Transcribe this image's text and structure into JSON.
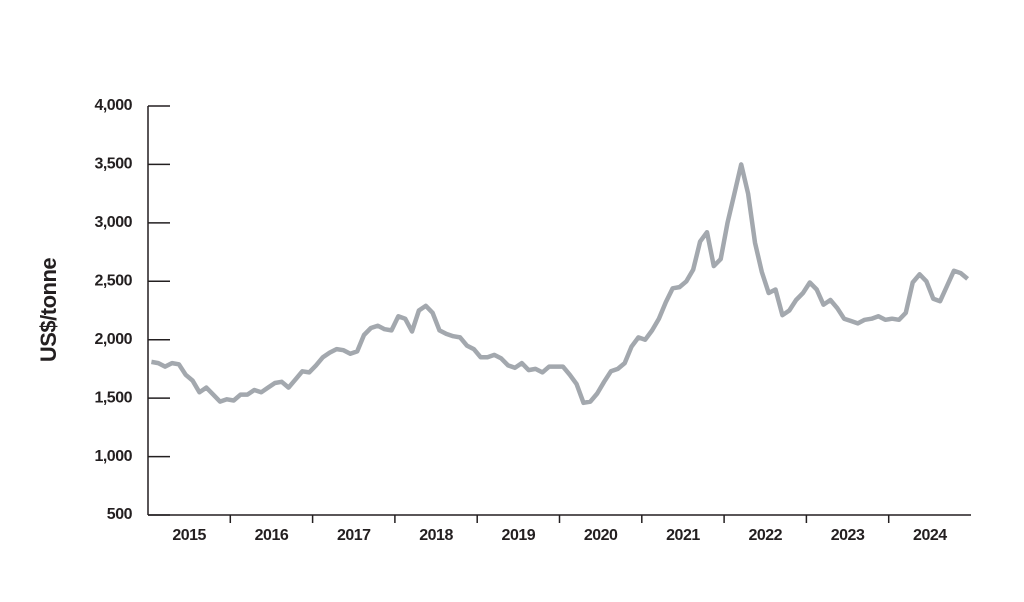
{
  "chart_data": {
    "type": "line",
    "y_label": "US$/tonne",
    "categories": [
      "2015",
      "2016",
      "2017",
      "2018",
      "2019",
      "2020",
      "2021",
      "2022",
      "2023",
      "2024"
    ],
    "series": [
      {
        "color": "#a3a8ae",
        "values": [
          [
            1810,
            1800,
            1770,
            1800,
            1790,
            1700,
            1650,
            1550,
            1590,
            1530,
            1470,
            1490
          ],
          [
            1480,
            1530,
            1530,
            1570,
            1550,
            1590,
            1630,
            1640,
            1590,
            1660,
            1730,
            1720
          ],
          [
            1780,
            1850,
            1890,
            1920,
            1910,
            1880,
            1900,
            2040,
            2100,
            2120,
            2090,
            2080
          ],
          [
            2200,
            2180,
            2070,
            2250,
            2290,
            2230,
            2080,
            2050,
            2030,
            2020,
            1950,
            1920
          ],
          [
            1850,
            1850,
            1870,
            1840,
            1780,
            1760,
            1800,
            1740,
            1750,
            1720,
            1770,
            1770
          ],
          [
            1770,
            1700,
            1620,
            1460,
            1470,
            1540,
            1640,
            1730,
            1750,
            1800,
            1940,
            2020
          ],
          [
            2000,
            2080,
            2180,
            2320,
            2440,
            2450,
            2500,
            2600,
            2840,
            2920,
            2630,
            2690
          ],
          [
            3000,
            3250,
            3500,
            3250,
            2830,
            2580,
            2400,
            2430,
            2210,
            2250,
            2340,
            2400
          ],
          [
            2490,
            2430,
            2300,
            2340,
            2270,
            2180,
            2160,
            2140,
            2170,
            2180,
            2200,
            2170
          ],
          [
            2180,
            2170,
            2230,
            2490,
            2560,
            2500,
            2350,
            2330,
            2460,
            2590,
            2570,
            2520
          ]
        ]
      }
    ],
    "ylim": [
      500,
      4000
    ],
    "yticks": [
      500,
      {
        "value": 1000,
        "label": "1,000"
      },
      {
        "value": 1500,
        "label": "1,500"
      },
      {
        "value": 2000,
        "label": "2,000"
      },
      {
        "value": 2500,
        "label": "2,500"
      },
      {
        "value": 3000,
        "label": "3,000"
      },
      {
        "value": 3500,
        "label": "3,500"
      },
      {
        "value": 4000,
        "label": "4,000"
      }
    ]
  }
}
